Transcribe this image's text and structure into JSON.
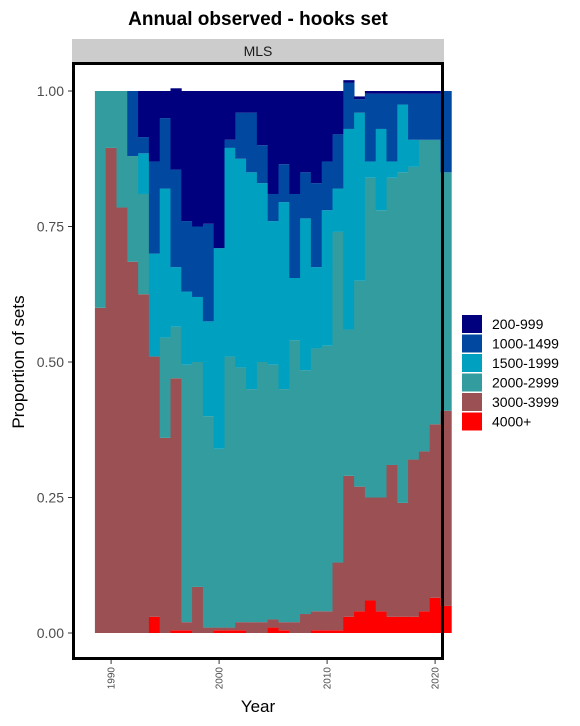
{
  "chart_data": {
    "type": "bar",
    "stacked": true,
    "title": "Annual observed - hooks set",
    "facet": "MLS",
    "xlabel": "Year",
    "ylabel": "Proportion of sets",
    "ylim": [
      0,
      1
    ],
    "yticks": [
      "0.00",
      "0.25",
      "0.50",
      "0.75",
      "1.00"
    ],
    "yticks_values": [
      0,
      0.25,
      0.5,
      0.75,
      1
    ],
    "xticks": [
      "1990",
      "2000",
      "2010",
      "2020"
    ],
    "xticks_values": [
      1990,
      2000,
      2010,
      2020
    ],
    "legend_position": "right",
    "x": [
      1989,
      1990,
      1991,
      1992,
      1993,
      1994,
      1995,
      1996,
      1997,
      1998,
      1999,
      2000,
      2001,
      2002,
      2003,
      2004,
      2005,
      2006,
      2007,
      2008,
      2009,
      2010,
      2011,
      2012,
      2013,
      2014,
      2015,
      2016,
      2017,
      2018,
      2019,
      2020,
      2021
    ],
    "series": [
      {
        "name": "4000+",
        "color": "#FF0000",
        "values": [
          0,
          0,
          0,
          0,
          0,
          0.03,
          0,
          0.005,
          0.005,
          0,
          0,
          0.005,
          0.005,
          0.005,
          0,
          0,
          0.01,
          0.005,
          0,
          0,
          0.005,
          0.005,
          0.005,
          0.03,
          0.04,
          0.06,
          0.04,
          0.03,
          0.03,
          0.03,
          0.04,
          0.065,
          0.05
        ]
      },
      {
        "name": "3000-3999",
        "color": "#9B5054",
        "values": [
          0.6,
          0.895,
          0.785,
          0.685,
          0.625,
          0.48,
          0.36,
          0.465,
          0.015,
          0.085,
          0.01,
          0.005,
          0.005,
          0.015,
          0.02,
          0.02,
          0.015,
          0.015,
          0.02,
          0.035,
          0.035,
          0.035,
          0.125,
          0.26,
          0.23,
          0.19,
          0.21,
          0.28,
          0.21,
          0.29,
          0.295,
          0.32,
          0.36
        ]
      },
      {
        "name": "2000-2999",
        "color": "#339C9E",
        "values": [
          0.4,
          0.105,
          0.215,
          0.195,
          0.185,
          0,
          0.185,
          0.095,
          0.475,
          0.415,
          0.39,
          0.33,
          0.5,
          0.47,
          0.43,
          0.48,
          0.47,
          0.43,
          0.52,
          0.45,
          0.485,
          0.49,
          0.61,
          0.27,
          0.38,
          0.59,
          0.53,
          0.53,
          0.61,
          0.54,
          0.575,
          0.525,
          0.44
        ]
      },
      {
        "name": "1500-1999",
        "color": "#00A0C0",
        "values": [
          0,
          0,
          0,
          0,
          0.075,
          0.19,
          0.275,
          0.11,
          0.135,
          0.12,
          0.175,
          0.37,
          0.385,
          0.385,
          0.4,
          0.33,
          0.265,
          0.345,
          0.115,
          0.28,
          0.15,
          0.25,
          0.08,
          0.37,
          0.31,
          0.03,
          0.15,
          0.03,
          0.125,
          0.05,
          0,
          0,
          0
        ]
      },
      {
        "name": "1000-1499",
        "color": "#0048A0",
        "values": [
          0,
          0,
          0,
          0.12,
          0.03,
          0.17,
          0.13,
          0.18,
          0.13,
          0.13,
          0.18,
          0.0,
          0.015,
          0.085,
          0.11,
          0.07,
          0.05,
          0.07,
          0.155,
          0.085,
          0.155,
          0.09,
          0.1,
          0.085,
          0.025,
          0.125,
          0.065,
          0.125,
          0.02,
          0.085,
          0.085,
          0.085,
          0.15
        ]
      },
      {
        "name": "200-999",
        "color": "#00007F",
        "values": [
          0,
          0,
          0,
          0,
          0.085,
          0.13,
          0.05,
          0.15,
          0.24,
          0.25,
          0.245,
          0.29,
          0.09,
          0.04,
          0.04,
          0.1,
          0.19,
          0.135,
          0.19,
          0.15,
          0.17,
          0.13,
          0.08,
          0.005,
          0.005,
          0.005,
          0.005,
          0.005,
          0.005,
          0.005,
          0.005,
          0.005,
          0
        ]
      }
    ]
  }
}
